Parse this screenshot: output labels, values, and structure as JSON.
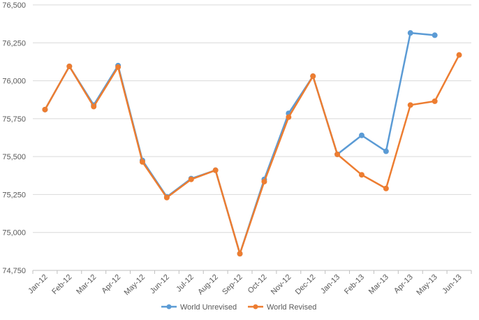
{
  "chart_data": {
    "type": "line",
    "title": "",
    "xlabel": "",
    "ylabel": "",
    "categories": [
      "Jan-12",
      "Feb-12",
      "Mar-12",
      "Apr-12",
      "May-12",
      "Jun-12",
      "Jul-12",
      "Aug-12",
      "Sep-12",
      "Oct-12",
      "Nov-12",
      "Dec-12",
      "Jan-13",
      "Feb-13",
      "Mar-13",
      "Apr-13",
      "May-13",
      "Jun-13"
    ],
    "ylim": [
      74750,
      76500
    ],
    "yticks": [
      74750,
      75000,
      75250,
      75500,
      75750,
      76000,
      76250,
      76500
    ],
    "ytick_labels": [
      "74,750",
      "75,000",
      "75,250",
      "75,500",
      "75,750",
      "76,000",
      "76,250",
      "76,500"
    ],
    "grid": "horizontal",
    "legend_position": "bottom",
    "series": [
      {
        "name": "World Unrevised",
        "color": "#5B9BD5",
        "values": [
          75810,
          76095,
          75840,
          76100,
          75475,
          75235,
          75355,
          75410,
          74860,
          75350,
          75785,
          76030,
          75515,
          75640,
          75535,
          76315,
          76300,
          null
        ]
      },
      {
        "name": "World Revised",
        "color": "#ED7D31",
        "values": [
          75810,
          76095,
          75830,
          76090,
          75465,
          75230,
          75350,
          75410,
          74860,
          75335,
          75760,
          76030,
          75515,
          75380,
          75290,
          75840,
          75865,
          76170
        ]
      }
    ]
  }
}
